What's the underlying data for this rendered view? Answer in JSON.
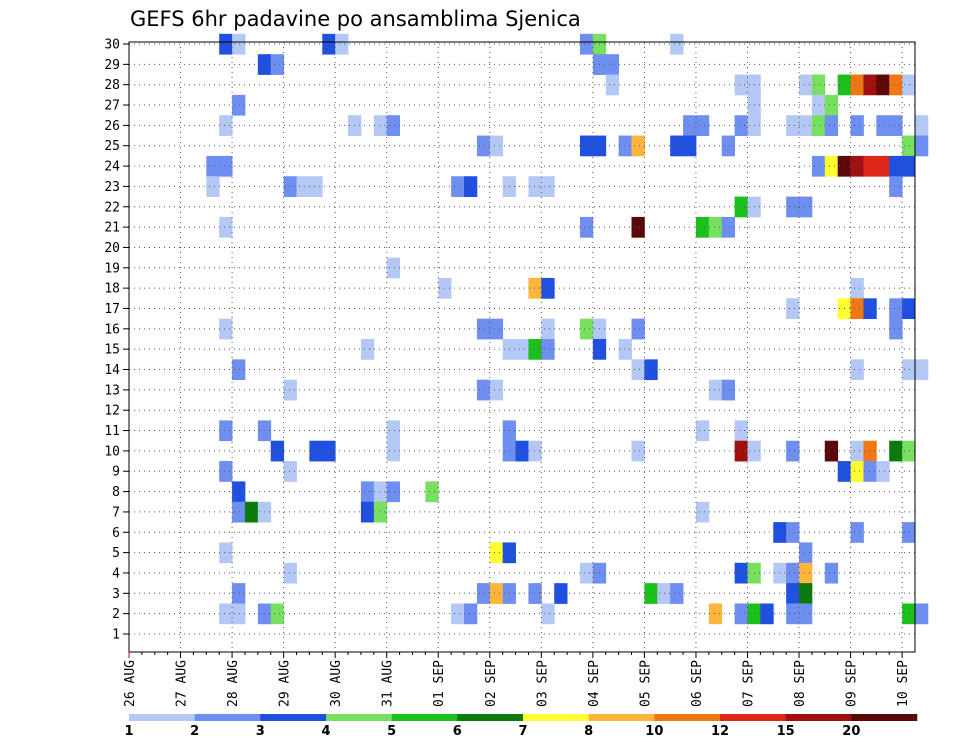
{
  "chart_data": {
    "type": "heatmap",
    "title": "GEFS 6hr padavine po ansamblima Sjenica",
    "x_ticks": [
      "26 AUG",
      "27 AUG",
      "28 AUG",
      "29 AUG",
      "30 AUG",
      "31 AUG",
      "01 SEP",
      "02 SEP",
      "03 SEP",
      "04 SEP",
      "05 SEP",
      "06 SEP",
      "07 SEP",
      "08 SEP",
      "09 SEP",
      "10 SEP"
    ],
    "y_ticks": [
      1,
      2,
      3,
      4,
      5,
      6,
      7,
      8,
      9,
      10,
      11,
      12,
      13,
      14,
      15,
      16,
      17,
      18,
      19,
      20,
      21,
      22,
      23,
      24,
      25,
      26,
      27,
      28,
      29,
      30
    ],
    "time_step_hours": 6,
    "ylim": [
      1,
      30
    ],
    "grid": true,
    "colorbar": {
      "levels": [
        "1",
        "2",
        "3",
        "4",
        "5",
        "6",
        "7",
        "8",
        "10",
        "12",
        "15",
        "20"
      ],
      "colors": [
        "#b4c8f5",
        "#6e8ef0",
        "#2050e0",
        "#78e060",
        "#1cc01c",
        "#0a7a0a",
        "#ffff30",
        "#ffb43c",
        "#f07814",
        "#e02818",
        "#a01010",
        "#5a0808"
      ]
    },
    "cells": [
      {
        "m": 30,
        "s": 7,
        "c": 3
      },
      {
        "m": 30,
        "s": 8,
        "c": 1
      },
      {
        "m": 30,
        "s": 15,
        "c": 3
      },
      {
        "m": 30,
        "s": 16,
        "c": 1
      },
      {
        "m": 30,
        "s": 35,
        "c": 2
      },
      {
        "m": 30,
        "s": 36,
        "c": 4
      },
      {
        "m": 30,
        "s": 42,
        "c": 1
      },
      {
        "m": 29,
        "s": 10,
        "c": 3
      },
      {
        "m": 29,
        "s": 11,
        "c": 2
      },
      {
        "m": 29,
        "s": 36,
        "c": 2
      },
      {
        "m": 29,
        "s": 37,
        "c": 2
      },
      {
        "m": 28,
        "s": 37,
        "c": 1
      },
      {
        "m": 28,
        "s": 47,
        "c": 1
      },
      {
        "m": 28,
        "s": 48,
        "c": 1
      },
      {
        "m": 28,
        "s": 52,
        "c": 1
      },
      {
        "m": 28,
        "s": 53,
        "c": 4
      },
      {
        "m": 28,
        "s": 55,
        "c": 5
      },
      {
        "m": 28,
        "s": 56,
        "c": 9
      },
      {
        "m": 28,
        "s": 57,
        "c": 11
      },
      {
        "m": 28,
        "s": 58,
        "c": 12
      },
      {
        "m": 28,
        "s": 59,
        "c": 9
      },
      {
        "m": 28,
        "s": 60,
        "c": 1
      },
      {
        "m": 27,
        "s": 8,
        "c": 2
      },
      {
        "m": 27,
        "s": 48,
        "c": 1
      },
      {
        "m": 27,
        "s": 53,
        "c": 1
      },
      {
        "m": 27,
        "s": 54,
        "c": 4
      },
      {
        "m": 26,
        "s": 7,
        "c": 1
      },
      {
        "m": 26,
        "s": 17,
        "c": 1
      },
      {
        "m": 26,
        "s": 19,
        "c": 1
      },
      {
        "m": 26,
        "s": 20,
        "c": 2
      },
      {
        "m": 26,
        "s": 43,
        "c": 2
      },
      {
        "m": 26,
        "s": 44,
        "c": 2
      },
      {
        "m": 26,
        "s": 47,
        "c": 2
      },
      {
        "m": 26,
        "s": 48,
        "c": 1
      },
      {
        "m": 26,
        "s": 51,
        "c": 1
      },
      {
        "m": 26,
        "s": 52,
        "c": 1
      },
      {
        "m": 26,
        "s": 53,
        "c": 4
      },
      {
        "m": 26,
        "s": 54,
        "c": 2
      },
      {
        "m": 26,
        "s": 56,
        "c": 2
      },
      {
        "m": 26,
        "s": 58,
        "c": 2
      },
      {
        "m": 26,
        "s": 59,
        "c": 2
      },
      {
        "m": 26,
        "s": 61,
        "c": 1
      },
      {
        "m": 25,
        "s": 27,
        "c": 2
      },
      {
        "m": 25,
        "s": 28,
        "c": 1
      },
      {
        "m": 25,
        "s": 35,
        "c": 3
      },
      {
        "m": 25,
        "s": 36,
        "c": 3
      },
      {
        "m": 25,
        "s": 38,
        "c": 2
      },
      {
        "m": 25,
        "s": 39,
        "c": 8
      },
      {
        "m": 25,
        "s": 42,
        "c": 3
      },
      {
        "m": 25,
        "s": 43,
        "c": 3
      },
      {
        "m": 25,
        "s": 46,
        "c": 2
      },
      {
        "m": 25,
        "s": 60,
        "c": 4
      },
      {
        "m": 25,
        "s": 61,
        "c": 2
      },
      {
        "m": 24,
        "s": 6,
        "c": 2
      },
      {
        "m": 24,
        "s": 7,
        "c": 2
      },
      {
        "m": 24,
        "s": 53,
        "c": 2
      },
      {
        "m": 24,
        "s": 54,
        "c": 7
      },
      {
        "m": 24,
        "s": 55,
        "c": 12
      },
      {
        "m": 24,
        "s": 56,
        "c": 11
      },
      {
        "m": 24,
        "s": 57,
        "c": 10
      },
      {
        "m": 24,
        "s": 58,
        "c": 10
      },
      {
        "m": 24,
        "s": 59,
        "c": 3
      },
      {
        "m": 24,
        "s": 60,
        "c": 3
      },
      {
        "m": 23,
        "s": 6,
        "c": 1
      },
      {
        "m": 23,
        "s": 12,
        "c": 2
      },
      {
        "m": 23,
        "s": 13,
        "c": 1
      },
      {
        "m": 23,
        "s": 14,
        "c": 1
      },
      {
        "m": 23,
        "s": 25,
        "c": 2
      },
      {
        "m": 23,
        "s": 26,
        "c": 3
      },
      {
        "m": 23,
        "s": 29,
        "c": 1
      },
      {
        "m": 23,
        "s": 31,
        "c": 1
      },
      {
        "m": 23,
        "s": 32,
        "c": 1
      },
      {
        "m": 23,
        "s": 59,
        "c": 2
      },
      {
        "m": 22,
        "s": 47,
        "c": 5
      },
      {
        "m": 22,
        "s": 48,
        "c": 1
      },
      {
        "m": 22,
        "s": 51,
        "c": 2
      },
      {
        "m": 22,
        "s": 52,
        "c": 2
      },
      {
        "m": 21,
        "s": 7,
        "c": 1
      },
      {
        "m": 21,
        "s": 35,
        "c": 2
      },
      {
        "m": 21,
        "s": 39,
        "c": 12
      },
      {
        "m": 21,
        "s": 44,
        "c": 5
      },
      {
        "m": 21,
        "s": 45,
        "c": 4
      },
      {
        "m": 21,
        "s": 46,
        "c": 2
      },
      {
        "m": 19,
        "s": 20,
        "c": 1
      },
      {
        "m": 18,
        "s": 24,
        "c": 1
      },
      {
        "m": 18,
        "s": 31,
        "c": 8
      },
      {
        "m": 18,
        "s": 32,
        "c": 3
      },
      {
        "m": 18,
        "s": 56,
        "c": 1
      },
      {
        "m": 17,
        "s": 51,
        "c": 1
      },
      {
        "m": 17,
        "s": 55,
        "c": 7
      },
      {
        "m": 17,
        "s": 56,
        "c": 9
      },
      {
        "m": 17,
        "s": 57,
        "c": 3
      },
      {
        "m": 17,
        "s": 59,
        "c": 2
      },
      {
        "m": 17,
        "s": 60,
        "c": 3
      },
      {
        "m": 16,
        "s": 7,
        "c": 1
      },
      {
        "m": 16,
        "s": 27,
        "c": 2
      },
      {
        "m": 16,
        "s": 28,
        "c": 2
      },
      {
        "m": 16,
        "s": 32,
        "c": 1
      },
      {
        "m": 16,
        "s": 35,
        "c": 4
      },
      {
        "m": 16,
        "s": 36,
        "c": 1
      },
      {
        "m": 16,
        "s": 39,
        "c": 2
      },
      {
        "m": 16,
        "s": 59,
        "c": 2
      },
      {
        "m": 15,
        "s": 18,
        "c": 1
      },
      {
        "m": 15,
        "s": 29,
        "c": 1
      },
      {
        "m": 15,
        "s": 30,
        "c": 1
      },
      {
        "m": 15,
        "s": 31,
        "c": 5
      },
      {
        "m": 15,
        "s": 32,
        "c": 2
      },
      {
        "m": 15,
        "s": 36,
        "c": 3
      },
      {
        "m": 15,
        "s": 38,
        "c": 1
      },
      {
        "m": 14,
        "s": 8,
        "c": 2
      },
      {
        "m": 14,
        "s": 39,
        "c": 1
      },
      {
        "m": 14,
        "s": 40,
        "c": 3
      },
      {
        "m": 14,
        "s": 56,
        "c": 1
      },
      {
        "m": 14,
        "s": 60,
        "c": 1
      },
      {
        "m": 14,
        "s": 61,
        "c": 1
      },
      {
        "m": 13,
        "s": 12,
        "c": 1
      },
      {
        "m": 13,
        "s": 27,
        "c": 2
      },
      {
        "m": 13,
        "s": 28,
        "c": 1
      },
      {
        "m": 13,
        "s": 45,
        "c": 1
      },
      {
        "m": 13,
        "s": 46,
        "c": 2
      },
      {
        "m": 11,
        "s": 7,
        "c": 2
      },
      {
        "m": 11,
        "s": 10,
        "c": 2
      },
      {
        "m": 11,
        "s": 20,
        "c": 1
      },
      {
        "m": 11,
        "s": 29,
        "c": 2
      },
      {
        "m": 11,
        "s": 44,
        "c": 1
      },
      {
        "m": 11,
        "s": 47,
        "c": 1
      },
      {
        "m": 10,
        "s": 11,
        "c": 3
      },
      {
        "m": 10,
        "s": 14,
        "c": 3
      },
      {
        "m": 10,
        "s": 15,
        "c": 3
      },
      {
        "m": 10,
        "s": 20,
        "c": 1
      },
      {
        "m": 10,
        "s": 29,
        "c": 2
      },
      {
        "m": 10,
        "s": 30,
        "c": 3
      },
      {
        "m": 10,
        "s": 31,
        "c": 1
      },
      {
        "m": 10,
        "s": 39,
        "c": 1
      },
      {
        "m": 10,
        "s": 47,
        "c": 11
      },
      {
        "m": 10,
        "s": 48,
        "c": 1
      },
      {
        "m": 10,
        "s": 51,
        "c": 2
      },
      {
        "m": 10,
        "s": 54,
        "c": 12
      },
      {
        "m": 10,
        "s": 56,
        "c": 1
      },
      {
        "m": 10,
        "s": 57,
        "c": 9
      },
      {
        "m": 10,
        "s": 59,
        "c": 6
      },
      {
        "m": 10,
        "s": 60,
        "c": 4
      },
      {
        "m": 9,
        "s": 7,
        "c": 2
      },
      {
        "m": 9,
        "s": 12,
        "c": 1
      },
      {
        "m": 9,
        "s": 55,
        "c": 3
      },
      {
        "m": 9,
        "s": 56,
        "c": 7
      },
      {
        "m": 9,
        "s": 57,
        "c": 2
      },
      {
        "m": 9,
        "s": 58,
        "c": 1
      },
      {
        "m": 8,
        "s": 18,
        "c": 2
      },
      {
        "m": 8,
        "s": 19,
        "c": 1
      },
      {
        "m": 8,
        "s": 20,
        "c": 2
      },
      {
        "m": 8,
        "s": 23,
        "c": 4
      },
      {
        "m": 8,
        "s": 8,
        "c": 3
      },
      {
        "m": 7,
        "s": 8,
        "c": 2
      },
      {
        "m": 7,
        "s": 9,
        "c": 6
      },
      {
        "m": 7,
        "s": 10,
        "c": 1
      },
      {
        "m": 7,
        "s": 18,
        "c": 3
      },
      {
        "m": 7,
        "s": 19,
        "c": 4
      },
      {
        "m": 7,
        "s": 44,
        "c": 1
      },
      {
        "m": 6,
        "s": 50,
        "c": 3
      },
      {
        "m": 6,
        "s": 51,
        "c": 2
      },
      {
        "m": 6,
        "s": 56,
        "c": 2
      },
      {
        "m": 6,
        "s": 60,
        "c": 2
      },
      {
        "m": 5,
        "s": 7,
        "c": 1
      },
      {
        "m": 5,
        "s": 28,
        "c": 7
      },
      {
        "m": 5,
        "s": 29,
        "c": 3
      },
      {
        "m": 5,
        "s": 52,
        "c": 2
      },
      {
        "m": 4,
        "s": 12,
        "c": 1
      },
      {
        "m": 4,
        "s": 35,
        "c": 1
      },
      {
        "m": 4,
        "s": 36,
        "c": 2
      },
      {
        "m": 4,
        "s": 47,
        "c": 3
      },
      {
        "m": 4,
        "s": 48,
        "c": 4
      },
      {
        "m": 4,
        "s": 50,
        "c": 1
      },
      {
        "m": 4,
        "s": 51,
        "c": 2
      },
      {
        "m": 4,
        "s": 52,
        "c": 8
      },
      {
        "m": 4,
        "s": 54,
        "c": 2
      },
      {
        "m": 3,
        "s": 8,
        "c": 2
      },
      {
        "m": 3,
        "s": 27,
        "c": 2
      },
      {
        "m": 3,
        "s": 28,
        "c": 8
      },
      {
        "m": 3,
        "s": 29,
        "c": 2
      },
      {
        "m": 3,
        "s": 31,
        "c": 2
      },
      {
        "m": 3,
        "s": 33,
        "c": 3
      },
      {
        "m": 3,
        "s": 40,
        "c": 5
      },
      {
        "m": 3,
        "s": 41,
        "c": 1
      },
      {
        "m": 3,
        "s": 42,
        "c": 2
      },
      {
        "m": 3,
        "s": 51,
        "c": 3
      },
      {
        "m": 3,
        "s": 52,
        "c": 6
      },
      {
        "m": 2,
        "s": 7,
        "c": 1
      },
      {
        "m": 2,
        "s": 8,
        "c": 1
      },
      {
        "m": 2,
        "s": 10,
        "c": 2
      },
      {
        "m": 2,
        "s": 11,
        "c": 4
      },
      {
        "m": 2,
        "s": 25,
        "c": 1
      },
      {
        "m": 2,
        "s": 26,
        "c": 2
      },
      {
        "m": 2,
        "s": 32,
        "c": 1
      },
      {
        "m": 2,
        "s": 45,
        "c": 8
      },
      {
        "m": 2,
        "s": 47,
        "c": 2
      },
      {
        "m": 2,
        "s": 48,
        "c": 5
      },
      {
        "m": 2,
        "s": 49,
        "c": 3
      },
      {
        "m": 2,
        "s": 51,
        "c": 2
      },
      {
        "m": 2,
        "s": 52,
        "c": 2
      },
      {
        "m": 2,
        "s": 60,
        "c": 5
      },
      {
        "m": 2,
        "s": 61,
        "c": 2
      }
    ]
  }
}
